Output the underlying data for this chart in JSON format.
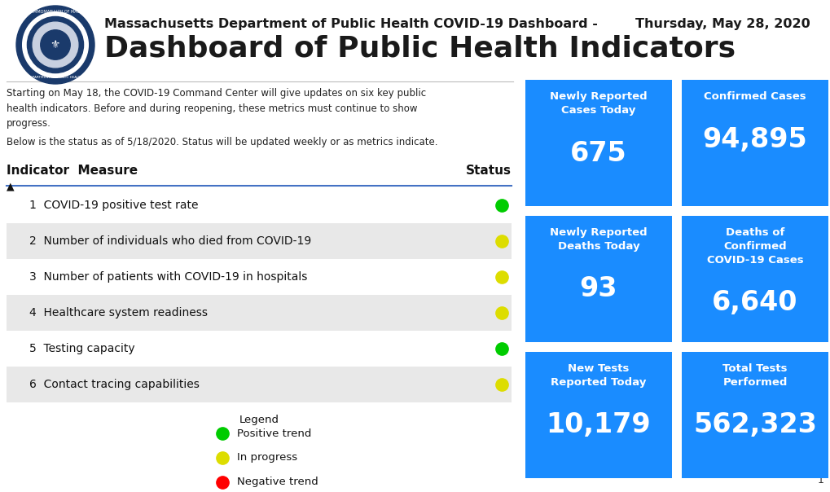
{
  "title_line1": "Massachusetts Department of Public Health COVID-19 Dashboard -",
  "title_date": "Thursday, May 28, 2020",
  "title_line2": "Dashboard of Public Health Indicators",
  "description1": "Starting on May 18, the COVID-19 Command Center will give updates on six key public\nhealth indicators. Before and during reopening, these metrics must continue to show\nprogress.",
  "description2": "Below is the status as of 5/18/2020. Status will be updated weekly or as metrics indicate.",
  "table_header_indicator": "Indicator  Measure",
  "table_header_status": "Status",
  "indicators": [
    {
      "num": "1",
      "measure": "COVID-19 positive test rate",
      "status": "green",
      "shaded": false
    },
    {
      "num": "2",
      "measure": "Number of individuals who died from COVID-19",
      "status": "yellow",
      "shaded": true
    },
    {
      "num": "3",
      "measure": "Number of patients with COVID-19 in hospitals",
      "status": "yellow",
      "shaded": false
    },
    {
      "num": "4",
      "measure": "Healthcare system readiness",
      "status": "yellow",
      "shaded": true
    },
    {
      "num": "5",
      "measure": "Testing capacity",
      "status": "green",
      "shaded": false
    },
    {
      "num": "6",
      "measure": "Contact tracing capabilities",
      "status": "yellow",
      "shaded": true
    }
  ],
  "legend_items": [
    {
      "color": "#00cc00",
      "label": "Positive trend"
    },
    {
      "color": "#dddd00",
      "label": "In progress"
    },
    {
      "color": "#ff0000",
      "label": "Negative trend"
    }
  ],
  "stat_boxes": [
    {
      "title": "Newly Reported\nCases Today",
      "value": "675",
      "col": 0,
      "row": 0
    },
    {
      "title": "Confirmed Cases",
      "value": "94,895",
      "col": 1,
      "row": 0
    },
    {
      "title": "Newly Reported\nDeaths Today",
      "value": "93",
      "col": 0,
      "row": 1
    },
    {
      "title": "Deaths of\nConfirmed\nCOVID‑19 Cases",
      "value": "6,640",
      "col": 1,
      "row": 1
    },
    {
      "title": "New Tests\nReported Today",
      "value": "10,179",
      "col": 0,
      "row": 2
    },
    {
      "title": "Total Tests\nPerformed",
      "value": "562,323",
      "col": 1,
      "row": 2
    }
  ],
  "box_color": "#1a8cff",
  "box_text_color": "#ffffff",
  "background_color": "#ffffff",
  "shaded_row_color": "#e8e8e8",
  "table_line_color": "#4472c4",
  "page_number": "1",
  "logo_outer_color": "#1a3a6b",
  "logo_mid_color": "#c0c8d8",
  "header_text_color": "#1a1a1a"
}
